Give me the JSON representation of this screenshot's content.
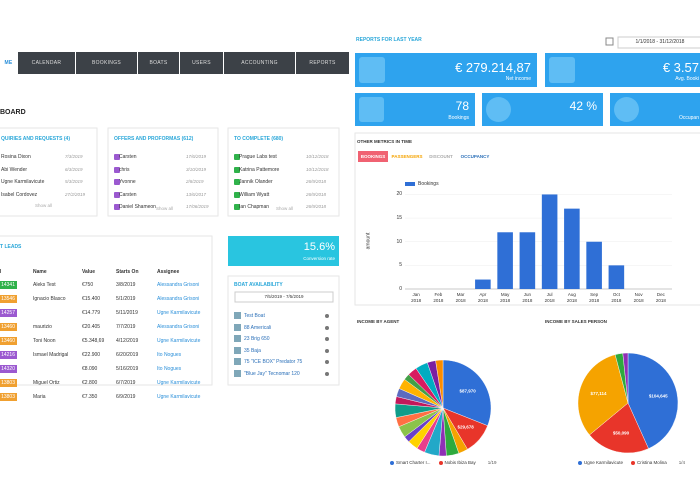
{
  "nav": {
    "tabs": [
      "ME",
      "CALENDAR",
      "BOOKINGS",
      "BOATS",
      "USERS",
      "ACCOUNTING",
      "REPORTS"
    ]
  },
  "dashboard": {
    "title": "BOARD",
    "cards": [
      {
        "title": "QUIRIES AND REQUESTS (4)",
        "rows": [
          {
            "name": "Rosina Dixon",
            "date": "7/3/2019"
          },
          {
            "name": "Abi Wender",
            "date": "6/3/2019"
          },
          {
            "name": "Ugne Karmilavicute",
            "date": "5/3/2019"
          },
          {
            "name": "Isabel Cordovez",
            "date": "27/2/2019"
          }
        ],
        "show_all": "Show all"
      },
      {
        "title": "OFFERS AND PROFORMAS (612)",
        "rows": [
          {
            "name": "Carsten",
            "date": "17/6/2019"
          },
          {
            "name": "chris",
            "date": "3/10/2019"
          },
          {
            "name": "Yvonne",
            "date": "2/8/2019"
          },
          {
            "name": "Carsten",
            "date": "13/6/2017"
          },
          {
            "name": "Daniel Shameon",
            "date": "17/06/2019"
          }
        ],
        "show_all": "Show all"
      },
      {
        "title": "TO COMPLETE (680)",
        "rows": [
          {
            "name": "Prague Labs test",
            "date": "10/12/2018"
          },
          {
            "name": "Katrina Pattemore",
            "date": "10/12/2018"
          },
          {
            "name": "Jannik Olander",
            "date": "26/9/2018"
          },
          {
            "name": "William Wyatt",
            "date": "26/9/2018"
          },
          {
            "name": "Ian Chapman",
            "date": "26/9/2018"
          }
        ],
        "show_all": "Show all"
      }
    ]
  },
  "leads": {
    "title": "T LEADS",
    "columns": [
      "d",
      "Name",
      "Value",
      "Starts On",
      "Assignee"
    ],
    "rows": [
      {
        "id": "14341",
        "name": "Aleks Test",
        "value": "€750",
        "starts_on": "3/8/2019",
        "assignee": "Alessandra Grisoni",
        "color": "#2fb24a"
      },
      {
        "id": "13546",
        "name": "Ignacio Blasco",
        "value": "€15.400",
        "starts_on": "5/1/2019",
        "assignee": "Alessandra Grisoni",
        "color": "#f0a030"
      },
      {
        "id": "14257",
        "name": null,
        "value": "€14.779",
        "starts_on": "5/11/2019",
        "assignee": "Ugne Karmilavicute",
        "color": "#9b59d0"
      },
      {
        "id": "13460",
        "name": "maurizio",
        "value": "€20.405",
        "starts_on": "7/7/2019",
        "assignee": "Alessandra Grisoni",
        "color": "#f0a030"
      },
      {
        "id": "13460",
        "name": "Toni Noon",
        "value": "€5.348,69",
        "starts_on": "4/12/2019",
        "assignee": "Ugne Karmilavicute",
        "color": "#f0a030"
      },
      {
        "id": "14216",
        "name": "Ismael Madrigal",
        "value": "€22.900",
        "starts_on": "6/20/2019",
        "assignee": "Ito Nogues",
        "color": "#9b59d0"
      },
      {
        "id": "14320",
        "name": null,
        "value": "€8.090",
        "starts_on": "5/16/2019",
        "assignee": "Ito Nogues",
        "color": "#9b59d0"
      },
      {
        "id": "13803",
        "name": "Miguel Ortiz",
        "value": "€2.800",
        "starts_on": "6/7/2019",
        "assignee": "Ugne Karmilavicute",
        "color": "#f0a030"
      },
      {
        "id": "13803",
        "name": "Maria",
        "value": "€7.350",
        "starts_on": "6/9/2019",
        "assignee": "Ugne Karmilavicute",
        "color": "#f0a030"
      }
    ]
  },
  "conversion": {
    "value": "15.6%",
    "label": "Conversion rate"
  },
  "availability": {
    "title": "BOAT AVAILABILITY",
    "date": "7/5/2019 - 7/5/2019",
    "boats": [
      "Test Boat",
      "88 Americali",
      "23 Brig 650",
      "35 Baja",
      "75 \"ICE BOX\" Predator 75",
      "\"Blue Jay\" Tecnomar 120"
    ]
  },
  "reports": {
    "title": "REPORTS FOR LAST YEAR",
    "date": "1/1/2018 - 31/12/2018",
    "tiles": [
      {
        "value": "€ 279.214,87",
        "label": "Net income"
      },
      {
        "value": "€ 3.57",
        "label": "Avg. Booki"
      },
      {
        "value": "78",
        "label": "Bookings"
      },
      {
        "value": "42 %",
        "label": null
      },
      {
        "value": null,
        "label": "Occupan"
      }
    ]
  },
  "metrics": {
    "title": "OTHER METRICS IN TIME",
    "tabs": [
      "BOOKINGS",
      "PASSENGERS",
      "DISCOUNT",
      "OCCUPANCY"
    ],
    "chart": {
      "type": "bar",
      "legend": "Bookings",
      "y_label": "amount",
      "color": "#2f6fd6",
      "categories": [
        "Jan 2018",
        "Feb 2018",
        "Mar 2018",
        "Apr 2018",
        "May 2018",
        "Jun 2018",
        "Jul 2018",
        "Aug 2018",
        "Sep 2018",
        "Oct 2018",
        "Nov 2018",
        "Dec 2018"
      ],
      "values": [
        0,
        0,
        0,
        2,
        12,
        12,
        20,
        17,
        10,
        5,
        0,
        0
      ],
      "ylim": [
        0,
        22
      ],
      "yticks": [
        0,
        5,
        10,
        15,
        20
      ],
      "grid": true
    }
  },
  "agent_pie": {
    "type": "pie",
    "title": "INCOME BY AGENT",
    "values": [
      87970,
      29678,
      9000,
      12000,
      7000,
      14000,
      8000,
      10000,
      6000,
      11000,
      9000,
      13000,
      7000,
      8000,
      10000,
      6000,
      9000,
      12000,
      8000,
      7000
    ],
    "value_labels": [
      "$87,970",
      "$29,678",
      null,
      null,
      null,
      null,
      null,
      null,
      null,
      null,
      null,
      null,
      null,
      null,
      null,
      null,
      null,
      null,
      null,
      null
    ],
    "colors": [
      "#2f6fd6",
      "#e8352a",
      "#f5a300",
      "#2eaa3d",
      "#8e2fb5",
      "#22a8c8",
      "#e83e8c",
      "#ffd200",
      "#6a3fc8",
      "#8bc34a",
      "#ff7043",
      "#0f9d8a",
      "#c2185b",
      "#5c6bc0",
      "#ffb300",
      "#43a047",
      "#d81b60",
      "#00acc1",
      "#7b1fa2",
      "#fb8c00"
    ],
    "legend": [
      "Smart Charter I...",
      "Nobis Ibiza Bay"
    ],
    "pager": "1/19"
  },
  "sales_pie": {
    "type": "pie",
    "title": "INCOME BY SALES PERSON",
    "values": [
      104645,
      50090,
      77114,
      6000,
      4000
    ],
    "value_labels": [
      "$104,645",
      "$50,090",
      "$77,114",
      null,
      null
    ],
    "colors": [
      "#2f6fd6",
      "#e8352a",
      "#f5a300",
      "#2eaa3d",
      "#8e2fb5"
    ],
    "legend": [
      "Ugne Karmilavicute",
      "Cristina Molina"
    ],
    "pager": "1/4"
  }
}
